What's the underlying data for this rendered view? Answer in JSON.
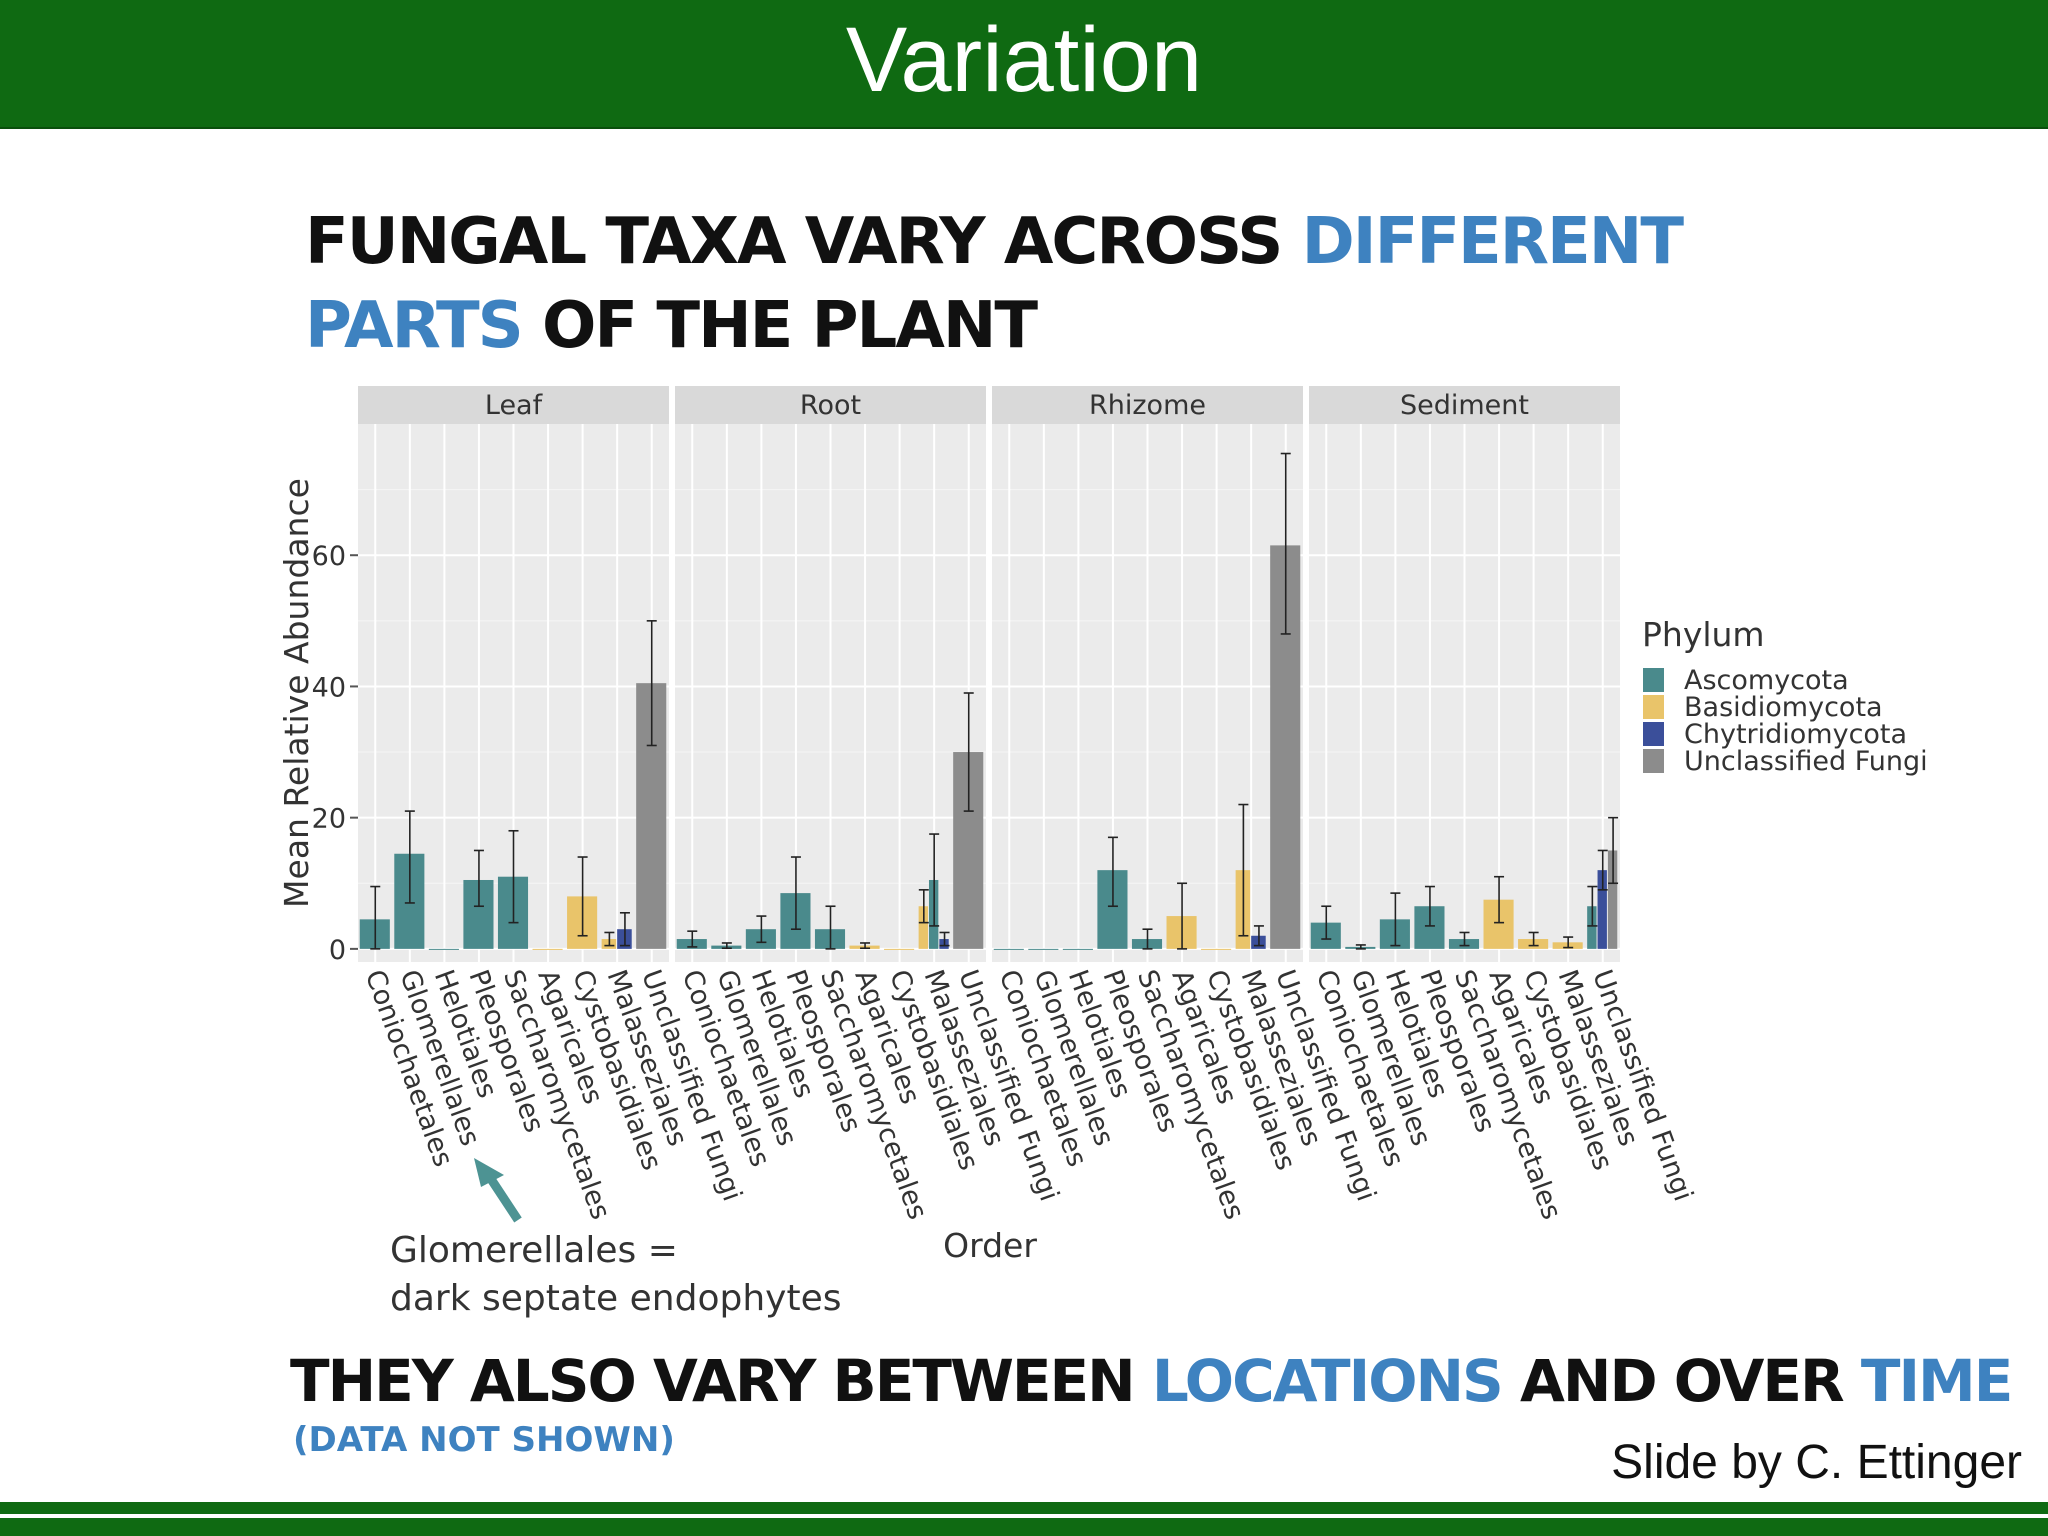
{
  "slide": {
    "title": "Variation",
    "heading_line1_part1": "FUNGAL TAXA VARY ACROSS ",
    "heading_line1_part2": "DIFFERENT",
    "heading_line2_part1": "PARTS",
    "heading_line2_part2": " OF THE PLANT",
    "bottom_part1": "THEY ALSO VARY BETWEEN ",
    "bottom_part2": "LOCATIONS",
    "bottom_part3": " AND OVER ",
    "bottom_part4": "TIME",
    "bottom_note": "(DATA NOT SHOWN)",
    "credit": "Slide by C. Ettinger",
    "annotation_line1": "Glomerellales =",
    "annotation_line2": "dark septate endophytes",
    "annotation_arrow_color": "#4d9393",
    "bar_color": "#0f6a12"
  },
  "chart_data": {
    "type": "bar",
    "facets": [
      "Leaf",
      "Root",
      "Rhizome",
      "Sediment"
    ],
    "categories": [
      "Coniochaetales",
      "Glomerellales",
      "Helotiales",
      "Pleosporales",
      "Saccharomycetales",
      "Agaricales",
      "Cystobasidiales",
      "Malasseziales",
      "Unclassified Fungi"
    ],
    "xlabel": "Order",
    "ylabel": "Mean Relative Abundance",
    "ylim": [
      -2,
      80
    ],
    "yticks": [
      0,
      20,
      40,
      60
    ],
    "legend": {
      "title": "Phylum",
      "placement": "right",
      "entries": [
        {
          "name": "Ascomycota",
          "color": "#4a8a8c"
        },
        {
          "name": "Basidiomycota",
          "color": "#e9c46a"
        },
        {
          "name": "Chytridiomycota",
          "color": "#3b4f9a"
        },
        {
          "name": "Unclassified Fungi",
          "color": "#8c8c8c"
        }
      ]
    },
    "series": [
      {
        "facet": "Leaf",
        "bars": [
          {
            "category": "Coniochaetales",
            "phylum": "Ascomycota",
            "value": 4.5,
            "err_low": 0,
            "err_high": 9.5
          },
          {
            "category": "Glomerellales",
            "phylum": "Ascomycota",
            "value": 14.5,
            "err_low": 7,
            "err_high": 21
          },
          {
            "category": "Helotiales",
            "phylum": "Ascomycota",
            "value": 0,
            "err_low": 0,
            "err_high": 0
          },
          {
            "category": "Pleosporales",
            "phylum": "Ascomycota",
            "value": 10.5,
            "err_low": 6.5,
            "err_high": 15
          },
          {
            "category": "Saccharomycetales",
            "phylum": "Ascomycota",
            "value": 11,
            "err_low": 4,
            "err_high": 18
          },
          {
            "category": "Agaricales",
            "phylum": "Basidiomycota",
            "value": 0,
            "err_low": 0,
            "err_high": 0
          },
          {
            "category": "Cystobasidiales",
            "phylum": "Basidiomycota",
            "value": 8,
            "err_low": 2,
            "err_high": 14
          },
          {
            "category": "Malasseziales",
            "phylum": "Basidiomycota",
            "value": 1.5,
            "err_low": 0.5,
            "err_high": 2.5
          },
          {
            "category": "Malasseziales",
            "phylum": "Chytridiomycota",
            "value": 3,
            "err_low": 0.5,
            "err_high": 5.5
          },
          {
            "category": "Unclassified Fungi",
            "phylum": "Unclassified Fungi",
            "value": 40.5,
            "err_low": 31,
            "err_high": 50
          }
        ]
      },
      {
        "facet": "Root",
        "bars": [
          {
            "category": "Coniochaetales",
            "phylum": "Ascomycota",
            "value": 1.5,
            "err_low": 0.3,
            "err_high": 2.7
          },
          {
            "category": "Glomerellales",
            "phylum": "Ascomycota",
            "value": 0.5,
            "err_low": 0.1,
            "err_high": 0.9
          },
          {
            "category": "Helotiales",
            "phylum": "Ascomycota",
            "value": 3,
            "err_low": 1,
            "err_high": 5
          },
          {
            "category": "Pleosporales",
            "phylum": "Ascomycota",
            "value": 8.5,
            "err_low": 3,
            "err_high": 14
          },
          {
            "category": "Saccharomycetales",
            "phylum": "Ascomycota",
            "value": 3,
            "err_low": 0,
            "err_high": 6.5
          },
          {
            "category": "Agaricales",
            "phylum": "Basidiomycota",
            "value": 0.5,
            "err_low": 0.1,
            "err_high": 0.9
          },
          {
            "category": "Cystobasidiales",
            "phylum": "Basidiomycota",
            "value": 0,
            "err_low": 0,
            "err_high": 0
          },
          {
            "category": "Malasseziales",
            "phylum": "Basidiomycota",
            "value": 6.5,
            "err_low": 4,
            "err_high": 9
          },
          {
            "category": "Malasseziales",
            "phylum": "Ascomycota",
            "value": 10.5,
            "err_low": 3.5,
            "err_high": 17.5
          },
          {
            "category": "Malasseziales",
            "phylum": "Chytridiomycota",
            "value": 1.5,
            "err_low": 0.5,
            "err_high": 2.5
          },
          {
            "category": "Unclassified Fungi",
            "phylum": "Unclassified Fungi",
            "value": 30,
            "err_low": 21,
            "err_high": 39
          }
        ]
      },
      {
        "facet": "Rhizome",
        "bars": [
          {
            "category": "Coniochaetales",
            "phylum": "Ascomycota",
            "value": 0,
            "err_low": 0,
            "err_high": 0
          },
          {
            "category": "Glomerellales",
            "phylum": "Ascomycota",
            "value": 0,
            "err_low": 0,
            "err_high": 0
          },
          {
            "category": "Helotiales",
            "phylum": "Ascomycota",
            "value": 0,
            "err_low": 0,
            "err_high": 0
          },
          {
            "category": "Pleosporales",
            "phylum": "Ascomycota",
            "value": 12,
            "err_low": 6.5,
            "err_high": 17
          },
          {
            "category": "Saccharomycetales",
            "phylum": "Ascomycota",
            "value": 1.5,
            "err_low": 0,
            "err_high": 3
          },
          {
            "category": "Agaricales",
            "phylum": "Basidiomycota",
            "value": 5,
            "err_low": 0,
            "err_high": 10
          },
          {
            "category": "Cystobasidiales",
            "phylum": "Basidiomycota",
            "value": 0,
            "err_low": 0,
            "err_high": 0
          },
          {
            "category": "Malasseziales",
            "phylum": "Basidiomycota",
            "value": 12,
            "err_low": 2,
            "err_high": 22
          },
          {
            "category": "Malasseziales",
            "phylum": "Chytridiomycota",
            "value": 2,
            "err_low": 0.5,
            "err_high": 3.5
          },
          {
            "category": "Unclassified Fungi",
            "phylum": "Unclassified Fungi",
            "value": 61.5,
            "err_low": 48,
            "err_high": 75.5
          }
        ]
      },
      {
        "facet": "Sediment",
        "bars": [
          {
            "category": "Coniochaetales",
            "phylum": "Ascomycota",
            "value": 4,
            "err_low": 1.5,
            "err_high": 6.5
          },
          {
            "category": "Glomerellales",
            "phylum": "Ascomycota",
            "value": 0.3,
            "err_low": 0,
            "err_high": 0.6
          },
          {
            "category": "Helotiales",
            "phylum": "Ascomycota",
            "value": 4.5,
            "err_low": 0.5,
            "err_high": 8.5
          },
          {
            "category": "Pleosporales",
            "phylum": "Ascomycota",
            "value": 6.5,
            "err_low": 3.5,
            "err_high": 9.5
          },
          {
            "category": "Saccharomycetales",
            "phylum": "Ascomycota",
            "value": 1.5,
            "err_low": 0.5,
            "err_high": 2.5
          },
          {
            "category": "Agaricales",
            "phylum": "Basidiomycota",
            "value": 7.5,
            "err_low": 4,
            "err_high": 11
          },
          {
            "category": "Cystobasidiales",
            "phylum": "Basidiomycota",
            "value": 1.5,
            "err_low": 0.5,
            "err_high": 2.5
          },
          {
            "category": "Malasseziales",
            "phylum": "Basidiomycota",
            "value": 1,
            "err_low": 0.2,
            "err_high": 1.8
          },
          {
            "category": "Unclassified Fungi",
            "phylum": "Ascomycota",
            "value": 6.5,
            "err_low": 3.5,
            "err_high": 9.5
          },
          {
            "category": "Unclassified Fungi",
            "phylum": "Chytridiomycota",
            "value": 12,
            "err_low": 9,
            "err_high": 15
          },
          {
            "category": "Unclassified Fungi",
            "phylum": "Unclassified Fungi",
            "value": 15,
            "err_low": 10,
            "err_high": 20
          }
        ]
      }
    ]
  }
}
